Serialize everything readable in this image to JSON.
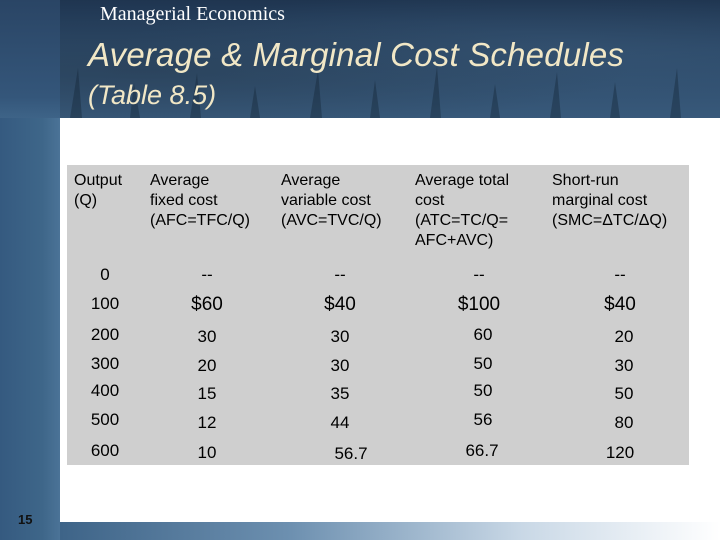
{
  "slide": {
    "header": "Managerial Economics",
    "title": "Average & Marginal Cost Schedules",
    "subtitle": "(Table 8.5)",
    "page_number": "15"
  },
  "table": {
    "columns": [
      "Output\n(Q)",
      "Average\nfixed cost\n(AFC=TFC/Q)",
      "Average\nvariable cost\n(AVC=TVC/Q)",
      "Average total\ncost\n(ATC=TC/Q=\nAFC+AVC)",
      "Short-run\nmarginal cost\n(SMC=ΔTC/ΔQ)"
    ],
    "rows": [
      [
        "0",
        "--",
        "--",
        "--",
        "--"
      ],
      [
        "100",
        "$60",
        "$40",
        "$100",
        "$40"
      ],
      [
        "200",
        "30",
        "30",
        "60",
        "20"
      ],
      [
        "300",
        "20",
        "30",
        "50",
        "30"
      ],
      [
        "400",
        "15",
        "35",
        "50",
        "50"
      ],
      [
        "500",
        "12",
        "44",
        "56",
        "80"
      ],
      [
        "600",
        "10",
        "56.7",
        "66.7",
        "120"
      ]
    ]
  }
}
